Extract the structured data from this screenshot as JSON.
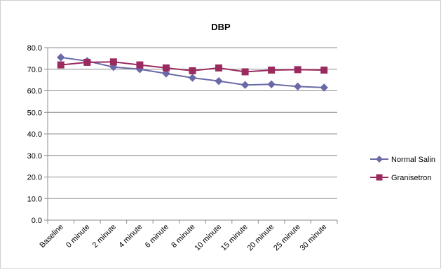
{
  "chart_data": {
    "type": "line",
    "title": "DBP",
    "xlabel": "",
    "ylabel": "",
    "categories": [
      "Baseline",
      "0 minute",
      "2 minute",
      "4 minute",
      "6 minute",
      "8 minute",
      "10 minute",
      "15 minute",
      "20 minute",
      "25 minute",
      "30 minute"
    ],
    "ylim": [
      0,
      80
    ],
    "yticks": [
      "0.0",
      "10.0",
      "20.0",
      "30.0",
      "40.0",
      "50.0",
      "60.0",
      "70.0",
      "80.0"
    ],
    "grid": true,
    "legend_position": "right",
    "series": [
      {
        "name": "Normal Salin",
        "color": "#6a6aa8",
        "marker": "diamond",
        "values": [
          75.5,
          73.8,
          71.0,
          70.0,
          68.0,
          66.0,
          64.5,
          62.7,
          63.0,
          62.0,
          61.5
        ]
      },
      {
        "name": "Granisetron",
        "color": "#9b2a5e",
        "marker": "square",
        "values": [
          72.0,
          73.2,
          73.4,
          72.0,
          70.6,
          69.3,
          70.6,
          68.8,
          69.6,
          69.8,
          69.6
        ]
      }
    ]
  }
}
